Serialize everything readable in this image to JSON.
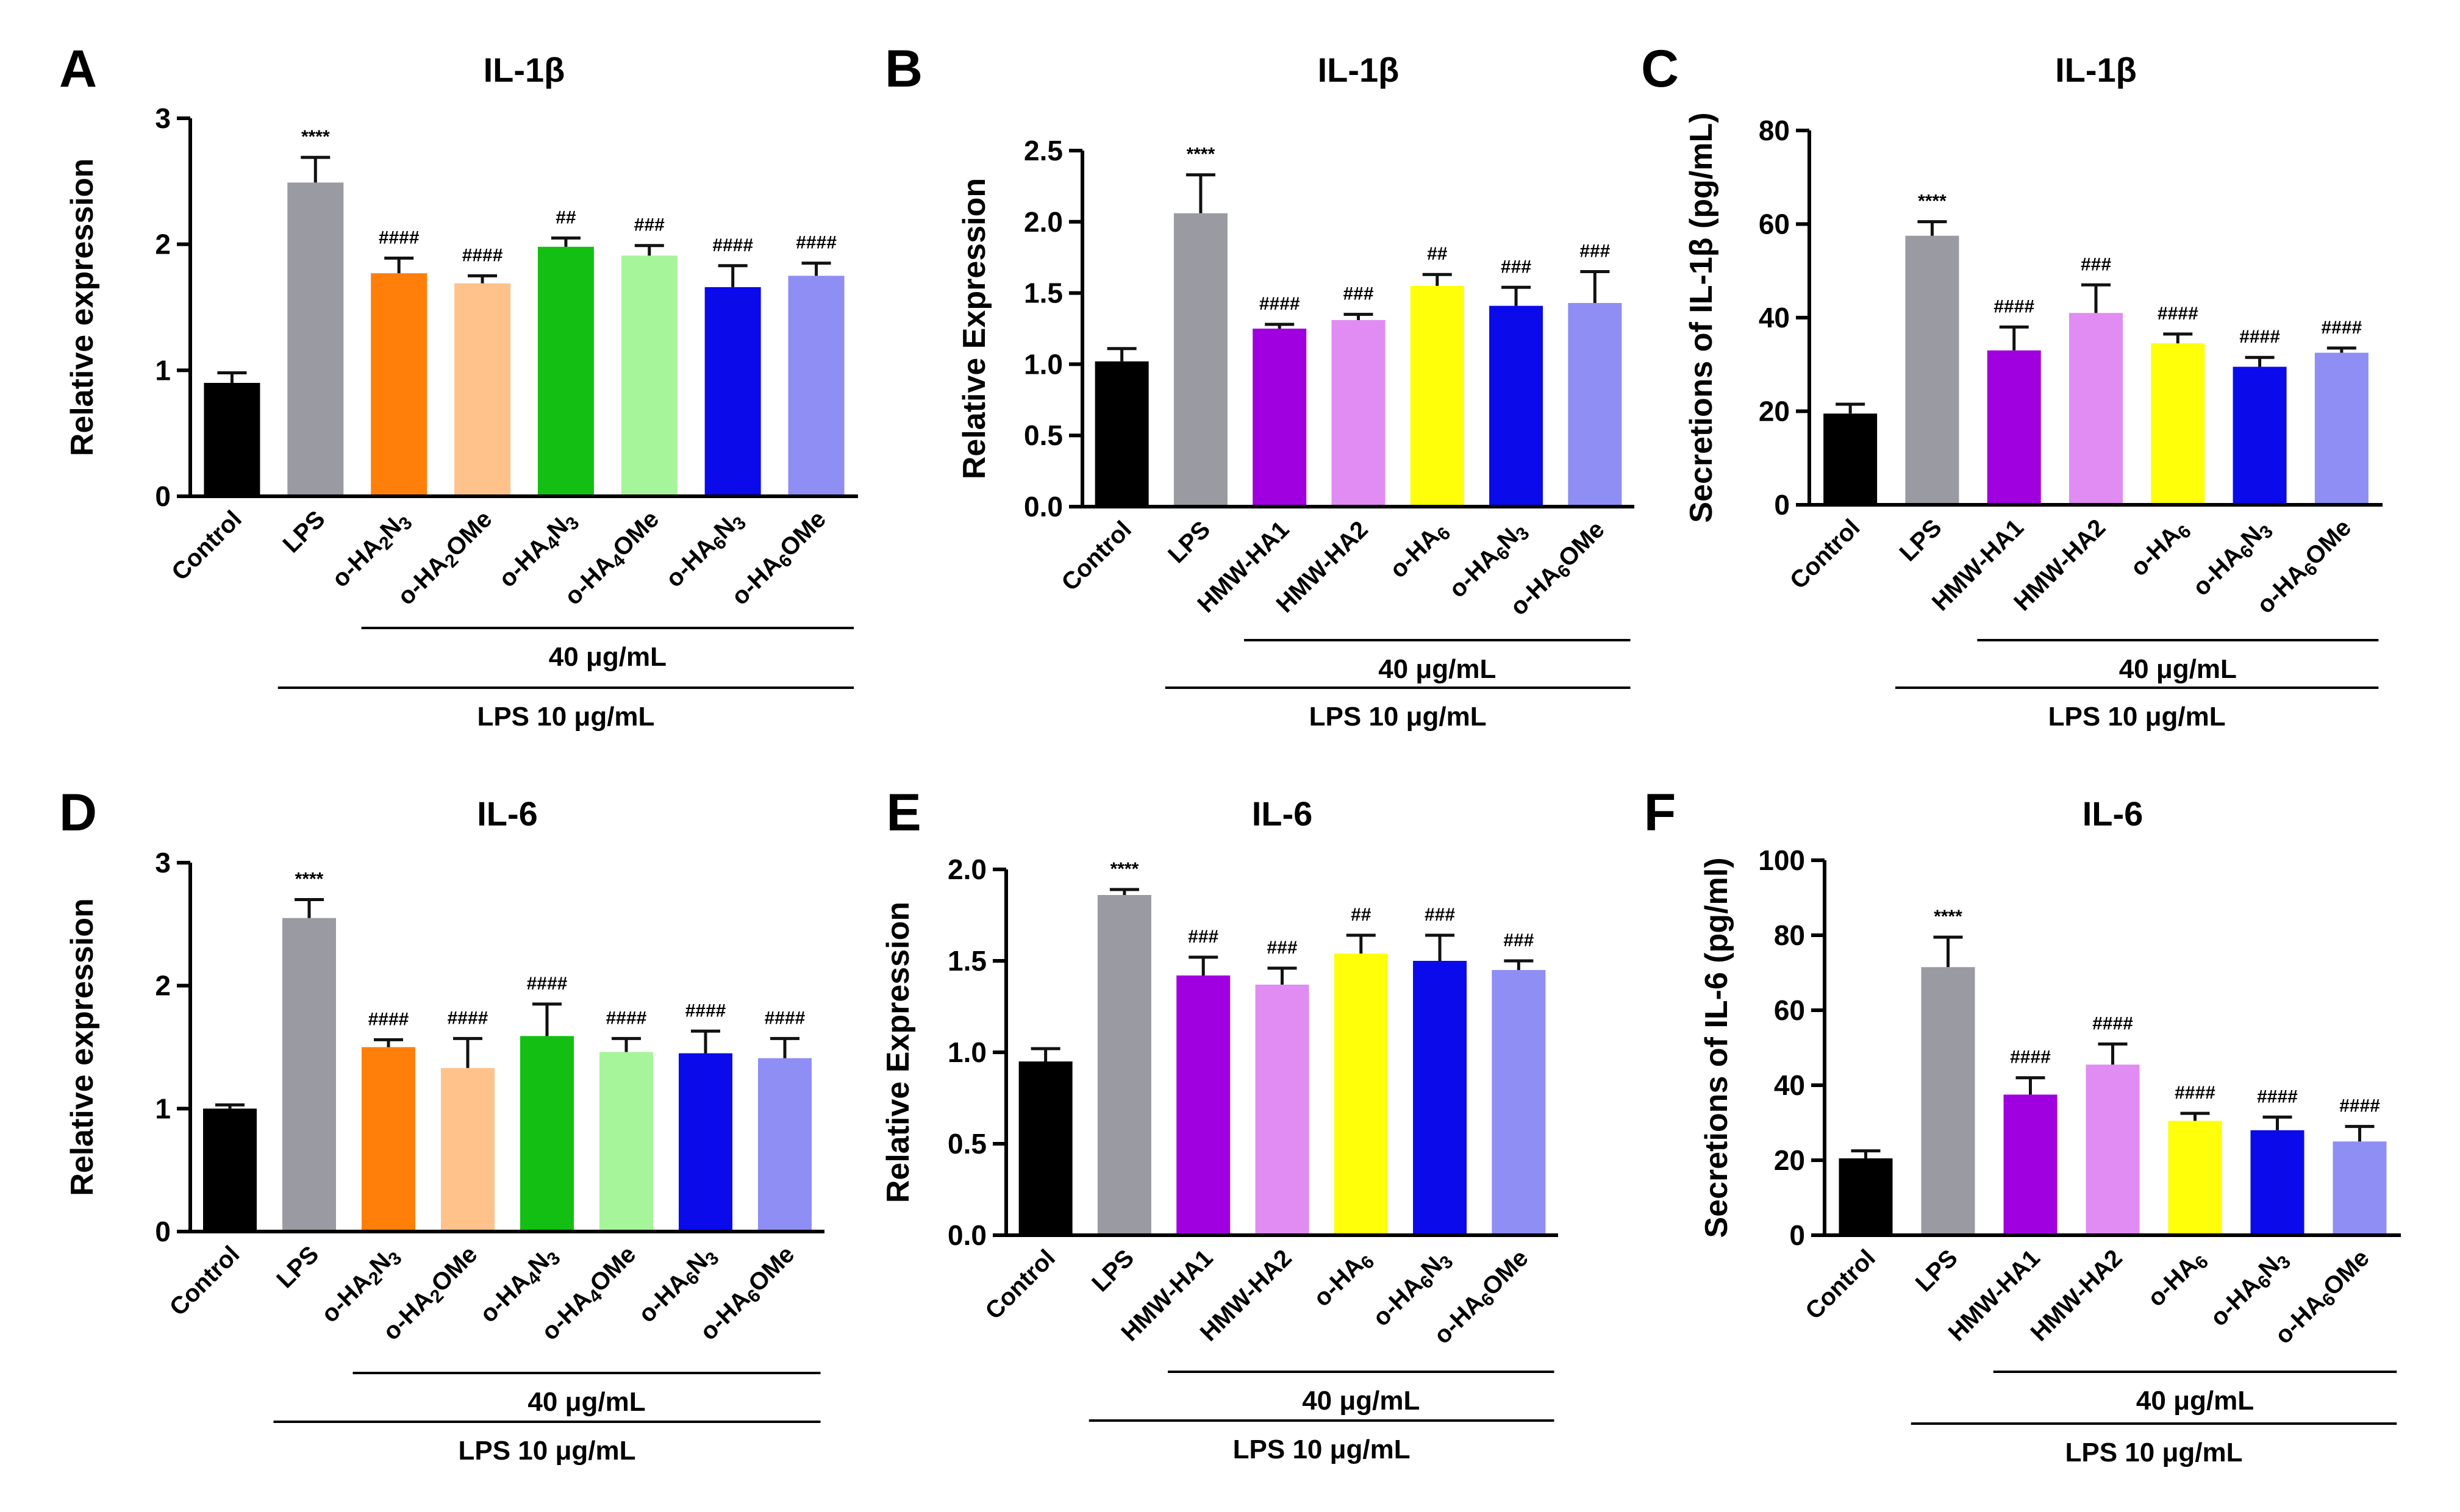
{
  "chart_data": [
    {
      "panel": "A",
      "type": "bar",
      "title": "IL-1β",
      "ylabel": "Relative expression",
      "ylim": [
        0,
        3
      ],
      "yticks": [
        "0",
        "1",
        "2",
        "3"
      ],
      "categories": [
        [
          "Control"
        ],
        [
          "LPS"
        ],
        [
          "o-HA",
          "2",
          "N",
          "3"
        ],
        [
          "o-HA",
          "2",
          "OMe"
        ],
        [
          "o-HA",
          "4",
          "N",
          "3"
        ],
        [
          "o-HA",
          "4",
          "OMe"
        ],
        [
          "o-HA",
          "6",
          "N",
          "3"
        ],
        [
          "o-HA",
          "6",
          "OMe"
        ]
      ],
      "values": [
        0.9,
        2.49,
        1.77,
        1.69,
        1.98,
        1.91,
        1.66,
        1.75
      ],
      "errors": [
        0.08,
        0.2,
        0.12,
        0.06,
        0.07,
        0.08,
        0.17,
        0.1
      ],
      "colors": [
        "#000000",
        "#9a9aa2",
        "#ff7f0a",
        "#ffc28a",
        "#12bf12",
        "#a6f59a",
        "#0a0aeb",
        "#8e8ef5"
      ],
      "significance": [
        "",
        "****",
        "####",
        "####",
        "##",
        "###",
        "####",
        "####"
      ],
      "brackets": [
        {
          "label": "40 μg/mL",
          "from": 2,
          "to": 7
        },
        {
          "label": "LPS 10 μg/mL",
          "from": 1,
          "to": 7
        }
      ]
    },
    {
      "panel": "B",
      "type": "bar",
      "title": "IL-1β",
      "ylabel": "Relative Expression",
      "ylim": [
        0,
        2.5
      ],
      "yticks": [
        "0.0",
        "0.5",
        "1.0",
        "1.5",
        "2.0",
        "2.5"
      ],
      "categories": [
        [
          "Control"
        ],
        [
          "LPS"
        ],
        [
          "HMW-HA1"
        ],
        [
          "HMW-HA2"
        ],
        [
          "o-HA",
          "6"
        ],
        [
          "o-HA",
          "6",
          "N",
          "3"
        ],
        [
          "o-HA",
          "6",
          "OMe"
        ]
      ],
      "values": [
        1.02,
        2.06,
        1.25,
        1.31,
        1.55,
        1.41,
        1.43
      ],
      "errors": [
        0.09,
        0.27,
        0.03,
        0.04,
        0.08,
        0.13,
        0.22
      ],
      "colors": [
        "#000000",
        "#9a9aa2",
        "#a000e0",
        "#e08cf2",
        "#ffff0a",
        "#0a0aeb",
        "#8e8ef5"
      ],
      "significance": [
        "",
        "****",
        "####",
        "###",
        "##",
        "###",
        "###"
      ],
      "brackets": [
        {
          "label": "40 μg/mL",
          "from": 2,
          "to": 6
        },
        {
          "label": "LPS 10 μg/mL",
          "from": 1,
          "to": 6
        }
      ]
    },
    {
      "panel": "C",
      "type": "bar",
      "title": "IL-1β",
      "ylabel": "Secretions of IL-1β (pg/mL)",
      "ylim": [
        0,
        80
      ],
      "yticks": [
        "0",
        "20",
        "40",
        "60",
        "80"
      ],
      "categories": [
        [
          "Control"
        ],
        [
          "LPS"
        ],
        [
          "HMW-HA1"
        ],
        [
          "HMW-HA2"
        ],
        [
          "o-HA",
          "6"
        ],
        [
          "o-HA",
          "6",
          "N",
          "3"
        ],
        [
          "o-HA",
          "6",
          "OMe"
        ]
      ],
      "values": [
        19.5,
        57.5,
        33,
        41,
        34.5,
        29.5,
        32.5
      ],
      "errors": [
        2,
        3,
        5,
        6,
        2,
        2,
        1
      ],
      "colors": [
        "#000000",
        "#9a9aa2",
        "#a000e0",
        "#e08cf2",
        "#ffff0a",
        "#0a0aeb",
        "#8e8ef5"
      ],
      "significance": [
        "",
        "****",
        "####",
        "###",
        "####",
        "####",
        "####"
      ],
      "brackets": [
        {
          "label": "40 μg/mL",
          "from": 2,
          "to": 6
        },
        {
          "label": "LPS 10 μg/mL",
          "from": 1,
          "to": 6
        }
      ]
    },
    {
      "panel": "D",
      "type": "bar",
      "title": "IL-6",
      "ylabel": "Relative expression",
      "ylim": [
        0,
        3
      ],
      "yticks": [
        "0",
        "1",
        "2",
        "3"
      ],
      "categories": [
        [
          "Control"
        ],
        [
          "LPS"
        ],
        [
          "o-HA",
          "2",
          "N",
          "3"
        ],
        [
          "o-HA",
          "2",
          "OMe"
        ],
        [
          "o-HA",
          "4",
          "N",
          "3"
        ],
        [
          "o-HA",
          "4",
          "OMe"
        ],
        [
          "o-HA",
          "6",
          "N",
          "3"
        ],
        [
          "o-HA",
          "6",
          "OMe"
        ]
      ],
      "values": [
        1.0,
        2.55,
        1.5,
        1.33,
        1.59,
        1.46,
        1.45,
        1.41
      ],
      "errors": [
        0.03,
        0.15,
        0.06,
        0.24,
        0.26,
        0.11,
        0.18,
        0.16
      ],
      "colors": [
        "#000000",
        "#9a9aa2",
        "#ff7f0a",
        "#ffc28a",
        "#12bf12",
        "#a6f59a",
        "#0a0aeb",
        "#8e8ef5"
      ],
      "significance": [
        "",
        "****",
        "####",
        "####",
        "####",
        "####",
        "####",
        "####"
      ],
      "brackets": [
        {
          "label": "40 μg/mL",
          "from": 2,
          "to": 7
        },
        {
          "label": "LPS 10 μg/mL",
          "from": 1,
          "to": 7
        }
      ]
    },
    {
      "panel": "E",
      "type": "bar",
      "title": "IL-6",
      "ylabel": "Relative Expression",
      "ylim": [
        0,
        2.0
      ],
      "yticks": [
        "0.0",
        "0.5",
        "1.0",
        "1.5",
        "2.0"
      ],
      "categories": [
        [
          "Control"
        ],
        [
          "LPS"
        ],
        [
          "HMW-HA1"
        ],
        [
          "HMW-HA2"
        ],
        [
          "o-HA",
          "6"
        ],
        [
          "o-HA",
          "6",
          "N",
          "3"
        ],
        [
          "o-HA",
          "6",
          "OMe"
        ]
      ],
      "values": [
        0.95,
        1.86,
        1.42,
        1.37,
        1.54,
        1.5,
        1.45
      ],
      "errors": [
        0.07,
        0.03,
        0.1,
        0.09,
        0.1,
        0.14,
        0.05
      ],
      "colors": [
        "#000000",
        "#9a9aa2",
        "#a000e0",
        "#e08cf2",
        "#ffff0a",
        "#0a0aeb",
        "#8e8ef5"
      ],
      "significance": [
        "",
        "****",
        "###",
        "###",
        "##",
        "###",
        "###"
      ],
      "brackets": [
        {
          "label": "40 μg/mL",
          "from": 2,
          "to": 6
        },
        {
          "label": "LPS 10 μg/mL",
          "from": 1,
          "to": 6
        }
      ]
    },
    {
      "panel": "F",
      "type": "bar",
      "title": "IL-6",
      "ylabel": "Secretions of IL-6 (pg/ml)",
      "ylim": [
        0,
        100
      ],
      "yticks": [
        "0",
        "20",
        "40",
        "60",
        "80",
        "100"
      ],
      "categories": [
        [
          "Control"
        ],
        [
          "LPS"
        ],
        [
          "HMW-HA1"
        ],
        [
          "HMW-HA2"
        ],
        [
          "o-HA",
          "6"
        ],
        [
          "o-HA",
          "6",
          "N",
          "3"
        ],
        [
          "o-HA",
          "6",
          "OMe"
        ]
      ],
      "values": [
        20.5,
        71.5,
        37.5,
        45.5,
        30.5,
        28,
        25
      ],
      "errors": [
        2,
        8,
        4.5,
        5.5,
        2,
        3.5,
        4
      ],
      "colors": [
        "#000000",
        "#9a9aa2",
        "#a000e0",
        "#e08cf2",
        "#ffff0a",
        "#0a0aeb",
        "#8e8ef5"
      ],
      "significance": [
        "",
        "****",
        "####",
        "####",
        "####",
        "####",
        "####"
      ],
      "brackets": [
        {
          "label": "40 μg/mL",
          "from": 2,
          "to": 6
        },
        {
          "label": "LPS 10 μg/mL",
          "from": 1,
          "to": 6
        }
      ]
    }
  ]
}
